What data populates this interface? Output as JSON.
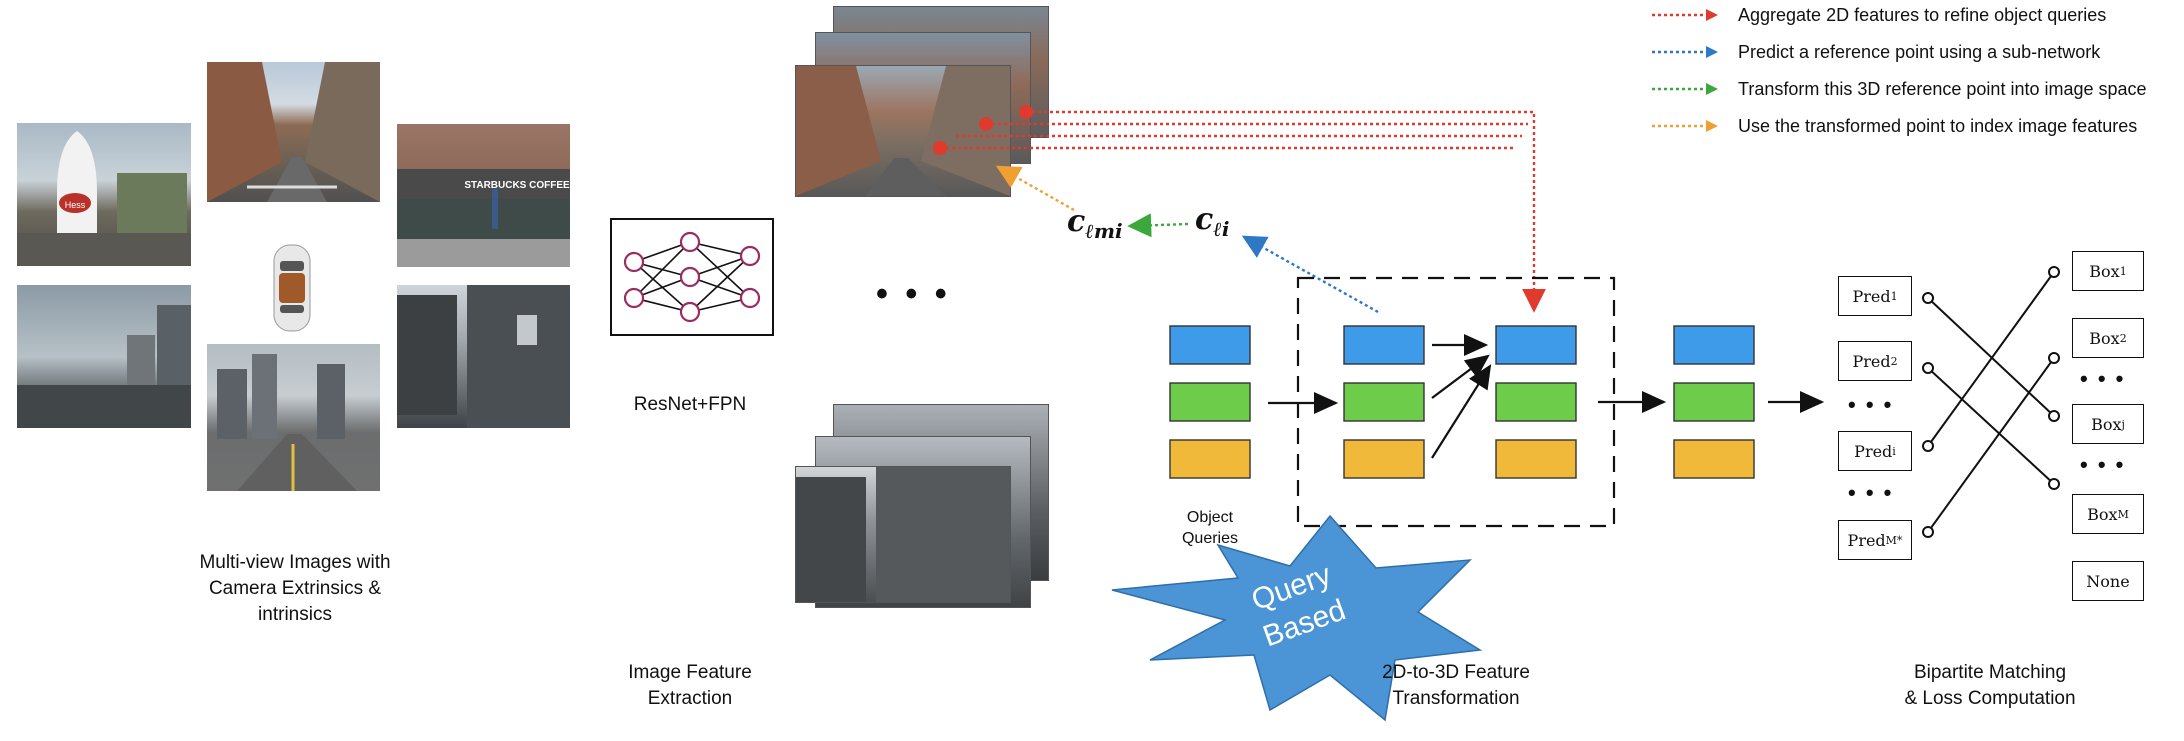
{
  "multiview": {
    "caption": "Multi-view Images with\nCamera Extrinsics &\nintrinsics",
    "camera_signs": {
      "cafe_sign": "STARBUCKS COFFEE",
      "balloon_text": "Hess"
    }
  },
  "backbone": {
    "label": "ResNet+FPN",
    "stage_caption": "Image Feature\nExtraction"
  },
  "feature_maps": {
    "ellipsis": "• • •"
  },
  "refpoints": {
    "c_lmi": "c",
    "c_lmi_sub": "ℓmi",
    "c_li": "c",
    "c_li_sub": "ℓi"
  },
  "queries": {
    "label": "Object\nQueries",
    "stage_caption": "2D-to-3D Feature\nTransformation",
    "starburst": "Query\nBased"
  },
  "matching": {
    "stage_caption": "Bipartite Matching\n& Loss Computation",
    "preds": [
      {
        "base": "Pred",
        "sub": "1"
      },
      {
        "base": "Pred",
        "sub": "2"
      },
      {
        "base": "Pred",
        "sub": "i"
      },
      {
        "base": "Pred",
        "sub": "M*"
      }
    ],
    "boxes": [
      {
        "base": "Box",
        "sub": "1"
      },
      {
        "base": "Box",
        "sub": "2"
      },
      {
        "base": "Box",
        "sub": "j"
      },
      {
        "base": "Box",
        "sub": "M"
      },
      {
        "base": "None",
        "sub": ""
      }
    ],
    "dots": "• • •"
  },
  "legend": [
    {
      "color": "#e03a2f",
      "text": "Aggregate 2D features to refine object queries"
    },
    {
      "color": "#2f78c4",
      "text": "Predict a reference point using a sub-network"
    },
    {
      "color": "#3aa83a",
      "text": "Transform this 3D reference point into image space"
    },
    {
      "color": "#f0a030",
      "text": "Use the transformed point to index image features"
    }
  ],
  "colors": {
    "query_blue": "#3d9be9",
    "query_green": "#6dcc4a",
    "query_yellow": "#f0b93a",
    "starburst": "#4b94d6",
    "node": "#9a2c62"
  }
}
